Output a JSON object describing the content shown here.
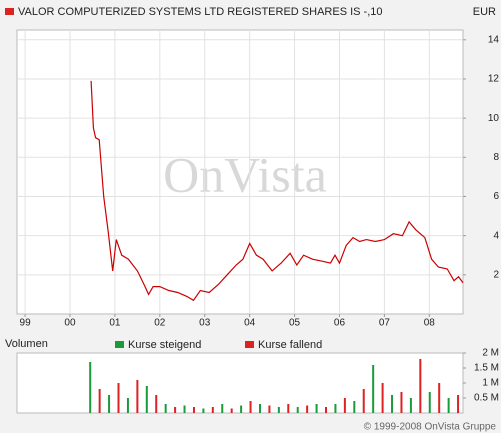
{
  "chart_data": [
    {
      "type": "line",
      "title": "VALOR COMPUTERIZED SYSTEMS LTD REGISTERED SHARES IS -,10",
      "unit": "EUR",
      "watermark": "OnVista",
      "grid": true,
      "x": [
        2000.47,
        2000.52,
        2000.57,
        2000.65,
        2000.75,
        2000.85,
        2000.95,
        2001.03,
        2001.15,
        2001.3,
        2001.5,
        2001.65,
        2001.75,
        2001.85,
        2002.0,
        2002.2,
        2002.4,
        2002.6,
        2002.75,
        2002.9,
        2003.1,
        2003.3,
        2003.5,
        2003.7,
        2003.85,
        2004.0,
        2004.15,
        2004.3,
        2004.5,
        2004.7,
        2004.9,
        2005.05,
        2005.2,
        2005.4,
        2005.6,
        2005.8,
        2005.9,
        2006.0,
        2006.15,
        2006.3,
        2006.45,
        2006.6,
        2006.8,
        2007.0,
        2007.2,
        2007.4,
        2007.55,
        2007.7,
        2007.9,
        2008.05,
        2008.2,
        2008.4,
        2008.55,
        2008.65,
        2008.75
      ],
      "series": [
        {
          "name": "Kurs",
          "color": "#cc0000",
          "values": [
            11.9,
            9.5,
            9.0,
            8.9,
            6,
            4.2,
            2.2,
            3.8,
            3.0,
            2.8,
            2.2,
            1.5,
            1.0,
            1.4,
            1.4,
            1.2,
            1.1,
            0.9,
            0.7,
            1.2,
            1.1,
            1.5,
            2.0,
            2.5,
            2.8,
            3.6,
            3.0,
            2.8,
            2.2,
            2.6,
            3.1,
            2.5,
            3.0,
            2.8,
            2.7,
            2.6,
            3.0,
            2.6,
            3.5,
            3.9,
            3.7,
            3.8,
            3.7,
            3.8,
            4.1,
            4.0,
            4.7,
            4.3,
            3.9,
            2.8,
            2.4,
            2.3,
            1.7,
            1.9,
            1.6
          ]
        }
      ],
      "xlim": [
        1998.82,
        2008.75
      ],
      "xticks": [
        {
          "value": 1999,
          "label": "99"
        },
        {
          "value": 2000,
          "label": "00"
        },
        {
          "value": 2001,
          "label": "01"
        },
        {
          "value": 2002,
          "label": "02"
        },
        {
          "value": 2003,
          "label": "03"
        },
        {
          "value": 2004,
          "label": "04"
        },
        {
          "value": 2005,
          "label": "05"
        },
        {
          "value": 2006,
          "label": "06"
        },
        {
          "value": 2007,
          "label": "07"
        },
        {
          "value": 2008,
          "label": "08"
        }
      ],
      "ylim": [
        0,
        14.5
      ],
      "yticks": [
        2,
        4,
        6,
        8,
        10,
        12,
        14
      ]
    },
    {
      "type": "bar",
      "title": "Volumen",
      "copyright": "© 1999-2008 OnVista Gruppe",
      "x": [
        2000.45,
        2000.66,
        2000.87,
        2001.08,
        2001.29,
        2001.5,
        2001.71,
        2001.92,
        2002.13,
        2002.34,
        2002.55,
        2002.76,
        2002.97,
        2003.18,
        2003.39,
        2003.6,
        2003.81,
        2004.02,
        2004.23,
        2004.44,
        2004.65,
        2004.86,
        2005.07,
        2005.28,
        2005.49,
        2005.7,
        2005.91,
        2006.12,
        2006.33,
        2006.54,
        2006.75,
        2006.96,
        2007.17,
        2007.38,
        2007.59,
        2007.8,
        2008.01,
        2008.22,
        2008.43,
        2008.64
      ],
      "series": [
        {
          "name": "Kurse steigend",
          "color": "#1a9a3a",
          "values": [
            1.7,
            null,
            0.6,
            null,
            0.5,
            null,
            0.9,
            null,
            0.3,
            null,
            0.25,
            null,
            0.15,
            null,
            0.3,
            null,
            0.25,
            null,
            0.3,
            null,
            0.2,
            null,
            0.2,
            null,
            0.3,
            null,
            0.3,
            null,
            0.4,
            null,
            1.6,
            null,
            0.6,
            null,
            0.5,
            null,
            0.7,
            null,
            0.5,
            null
          ]
        },
        {
          "name": "Kurse fallend",
          "color": "#dd2222",
          "values": [
            null,
            0.8,
            null,
            1.0,
            null,
            1.1,
            null,
            0.6,
            null,
            0.2,
            null,
            0.2,
            null,
            0.2,
            null,
            0.15,
            null,
            0.4,
            null,
            0.25,
            null,
            0.3,
            null,
            0.25,
            null,
            0.2,
            null,
            0.5,
            null,
            0.8,
            null,
            1.0,
            null,
            0.7,
            null,
            1.8,
            null,
            1.0,
            null,
            0.6
          ]
        }
      ],
      "xlim": [
        1998.82,
        2008.75
      ],
      "ylim": [
        0,
        2
      ],
      "yticks": [
        {
          "value": 0.5,
          "label": "0.5 M"
        },
        {
          "value": 1,
          "label": "1 M"
        },
        {
          "value": 1.5,
          "label": "1.5 M"
        },
        {
          "value": 2,
          "label": "2 M"
        }
      ]
    }
  ]
}
